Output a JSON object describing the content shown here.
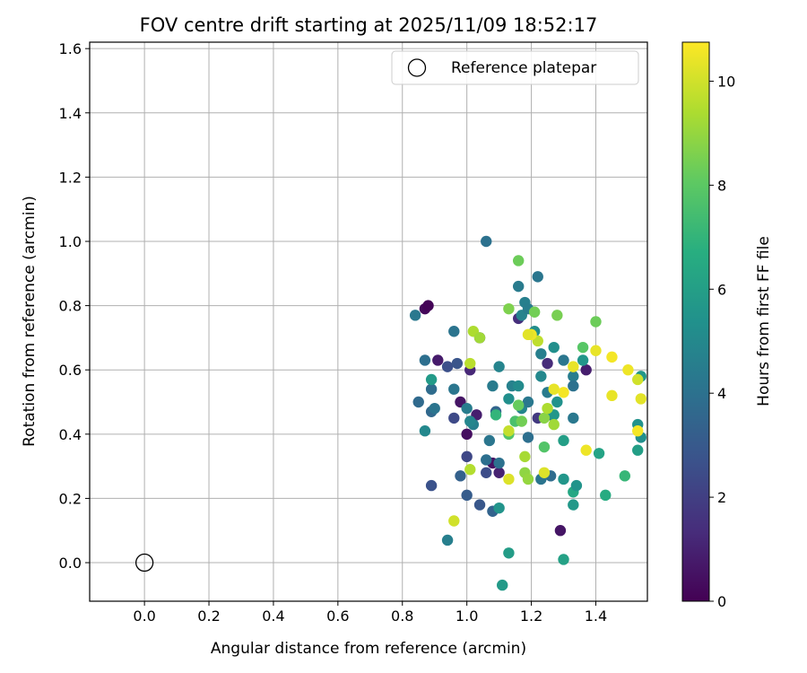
{
  "chart_data": {
    "type": "scatter",
    "title": "FOV centre drift starting at 2025/11/09 18:52:17",
    "xlabel": "Angular distance from reference (arcmin)",
    "ylabel": "Rotation from reference (arcmin)",
    "xlim": [
      -0.17,
      1.56
    ],
    "ylim": [
      -0.12,
      1.62
    ],
    "x_ticks": [
      "0.0",
      "0.2",
      "0.4",
      "0.6",
      "0.8",
      "1.0",
      "1.2",
      "1.4"
    ],
    "x_tick_values": [
      0.0,
      0.2,
      0.4,
      0.6,
      0.8,
      1.0,
      1.2,
      1.4
    ],
    "y_ticks": [
      "0.0",
      "0.2",
      "0.4",
      "0.6",
      "0.8",
      "1.0",
      "1.2",
      "1.4",
      "1.6"
    ],
    "y_tick_values": [
      0.0,
      0.2,
      0.4,
      0.6,
      0.8,
      1.0,
      1.2,
      1.4,
      1.6
    ],
    "grid": true,
    "legend": {
      "placement": "top-right",
      "label": "Reference platepar"
    },
    "reference": {
      "x": 0.0,
      "y": 0.0
    },
    "colorbar": {
      "label": "Hours from first FF file",
      "range": [
        0,
        10.75
      ],
      "ticks": [
        "0",
        "2",
        "4",
        "6",
        "8",
        "10"
      ],
      "tick_values": [
        0,
        2,
        4,
        6,
        8,
        10
      ],
      "colormap": "viridis"
    },
    "points": [
      {
        "x": 0.87,
        "y": 0.79,
        "h": 0.2
      },
      {
        "x": 0.88,
        "y": 0.8,
        "h": 0.1
      },
      {
        "x": 0.91,
        "y": 0.63,
        "h": 0.8
      },
      {
        "x": 0.98,
        "y": 0.5,
        "h": 0.6
      },
      {
        "x": 1.01,
        "y": 0.6,
        "h": 1.2
      },
      {
        "x": 1.04,
        "y": 0.7,
        "h": 1.5
      },
      {
        "x": 1.03,
        "y": 0.46,
        "h": 0.9
      },
      {
        "x": 1.0,
        "y": 0.4,
        "h": 0.4
      },
      {
        "x": 1.08,
        "y": 0.31,
        "h": 0.5
      },
      {
        "x": 1.1,
        "y": 0.28,
        "h": 1.0
      },
      {
        "x": 1.16,
        "y": 0.76,
        "h": 1.4
      },
      {
        "x": 1.25,
        "y": 0.62,
        "h": 1.3
      },
      {
        "x": 1.37,
        "y": 0.6,
        "h": 0.9
      },
      {
        "x": 1.29,
        "y": 0.1,
        "h": 0.6
      },
      {
        "x": 1.22,
        "y": 0.45,
        "h": 1.8
      },
      {
        "x": 0.94,
        "y": 0.61,
        "h": 2.6
      },
      {
        "x": 0.96,
        "y": 0.45,
        "h": 2.4
      },
      {
        "x": 0.97,
        "y": 0.62,
        "h": 2.8
      },
      {
        "x": 0.89,
        "y": 0.24,
        "h": 2.7
      },
      {
        "x": 1.0,
        "y": 0.21,
        "h": 3.1
      },
      {
        "x": 1.0,
        "y": 0.33,
        "h": 2.3
      },
      {
        "x": 1.04,
        "y": 0.18,
        "h": 2.9
      },
      {
        "x": 1.08,
        "y": 0.16,
        "h": 3.4
      },
      {
        "x": 1.06,
        "y": 0.28,
        "h": 2.5
      },
      {
        "x": 0.98,
        "y": 0.27,
        "h": 3.3
      },
      {
        "x": 0.89,
        "y": 0.47,
        "h": 3.6
      },
      {
        "x": 0.85,
        "y": 0.5,
        "h": 3.7
      },
      {
        "x": 0.87,
        "y": 0.63,
        "h": 3.9
      },
      {
        "x": 0.89,
        "y": 0.54,
        "h": 3.8
      },
      {
        "x": 0.9,
        "y": 0.48,
        "h": 4.1
      },
      {
        "x": 1.06,
        "y": 1.0,
        "h": 4.0
      },
      {
        "x": 1.22,
        "y": 0.89,
        "h": 4.2
      },
      {
        "x": 1.16,
        "y": 0.86,
        "h": 4.4
      },
      {
        "x": 1.18,
        "y": 0.81,
        "h": 4.6
      },
      {
        "x": 1.17,
        "y": 0.77,
        "h": 4.8
      },
      {
        "x": 1.19,
        "y": 0.79,
        "h": 4.5
      },
      {
        "x": 0.84,
        "y": 0.77,
        "h": 4.3
      },
      {
        "x": 0.96,
        "y": 0.72,
        "h": 4.1
      },
      {
        "x": 0.96,
        "y": 0.54,
        "h": 4.2
      },
      {
        "x": 1.0,
        "y": 0.48,
        "h": 4.5
      },
      {
        "x": 1.02,
        "y": 0.43,
        "h": 4.6
      },
      {
        "x": 1.01,
        "y": 0.44,
        "h": 4.9
      },
      {
        "x": 1.08,
        "y": 0.55,
        "h": 4.4
      },
      {
        "x": 1.09,
        "y": 0.47,
        "h": 3.5
      },
      {
        "x": 1.1,
        "y": 0.61,
        "h": 4.8
      },
      {
        "x": 1.07,
        "y": 0.38,
        "h": 4.2
      },
      {
        "x": 1.06,
        "y": 0.32,
        "h": 3.9
      },
      {
        "x": 1.1,
        "y": 0.31,
        "h": 4.0
      },
      {
        "x": 1.13,
        "y": 0.51,
        "h": 5.3
      },
      {
        "x": 1.14,
        "y": 0.55,
        "h": 4.7
      },
      {
        "x": 1.16,
        "y": 0.55,
        "h": 5.1
      },
      {
        "x": 1.17,
        "y": 0.48,
        "h": 4.9
      },
      {
        "x": 1.19,
        "y": 0.5,
        "h": 4.3
      },
      {
        "x": 1.19,
        "y": 0.39,
        "h": 3.9
      },
      {
        "x": 1.21,
        "y": 0.72,
        "h": 5.2
      },
      {
        "x": 1.23,
        "y": 0.65,
        "h": 4.6
      },
      {
        "x": 1.23,
        "y": 0.58,
        "h": 5.0
      },
      {
        "x": 1.25,
        "y": 0.53,
        "h": 4.4
      },
      {
        "x": 1.26,
        "y": 0.46,
        "h": 3.6
      },
      {
        "x": 1.23,
        "y": 0.26,
        "h": 4.1
      },
      {
        "x": 1.26,
        "y": 0.27,
        "h": 3.8
      },
      {
        "x": 1.27,
        "y": 0.46,
        "h": 5.6
      },
      {
        "x": 1.28,
        "y": 0.5,
        "h": 5.4
      },
      {
        "x": 1.27,
        "y": 0.67,
        "h": 5.3
      },
      {
        "x": 1.3,
        "y": 0.63,
        "h": 4.2
      },
      {
        "x": 1.33,
        "y": 0.58,
        "h": 4.5
      },
      {
        "x": 1.33,
        "y": 0.55,
        "h": 4.0
      },
      {
        "x": 1.33,
        "y": 0.45,
        "h": 4.3
      },
      {
        "x": 1.36,
        "y": 0.63,
        "h": 5.6
      },
      {
        "x": 1.3,
        "y": 0.38,
        "h": 6.0
      },
      {
        "x": 1.3,
        "y": 0.26,
        "h": 5.6
      },
      {
        "x": 1.33,
        "y": 0.18,
        "h": 5.7
      },
      {
        "x": 1.33,
        "y": 0.22,
        "h": 6.4
      },
      {
        "x": 1.34,
        "y": 0.24,
        "h": 5.5
      },
      {
        "x": 1.3,
        "y": 0.01,
        "h": 6.1
      },
      {
        "x": 1.13,
        "y": 0.03,
        "h": 5.9
      },
      {
        "x": 1.11,
        "y": -0.07,
        "h": 5.8
      },
      {
        "x": 1.1,
        "y": 0.17,
        "h": 5.5
      },
      {
        "x": 0.94,
        "y": 0.07,
        "h": 4.6
      },
      {
        "x": 0.87,
        "y": 0.41,
        "h": 5.0
      },
      {
        "x": 0.89,
        "y": 0.57,
        "h": 5.8
      },
      {
        "x": 1.41,
        "y": 0.34,
        "h": 6.2
      },
      {
        "x": 1.43,
        "y": 0.21,
        "h": 6.6
      },
      {
        "x": 1.49,
        "y": 0.27,
        "h": 7.1
      },
      {
        "x": 1.54,
        "y": 0.58,
        "h": 5.7
      },
      {
        "x": 1.54,
        "y": 0.39,
        "h": 5.3
      },
      {
        "x": 1.53,
        "y": 0.43,
        "h": 5.4
      },
      {
        "x": 1.53,
        "y": 0.35,
        "h": 6.0
      },
      {
        "x": 1.09,
        "y": 0.46,
        "h": 7.0
      },
      {
        "x": 1.15,
        "y": 0.44,
        "h": 7.6
      },
      {
        "x": 1.13,
        "y": 0.4,
        "h": 7.8
      },
      {
        "x": 1.16,
        "y": 0.49,
        "h": 8.2
      },
      {
        "x": 1.17,
        "y": 0.44,
        "h": 8.4
      },
      {
        "x": 1.13,
        "y": 0.79,
        "h": 8.6
      },
      {
        "x": 1.16,
        "y": 0.94,
        "h": 8.3
      },
      {
        "x": 1.21,
        "y": 0.78,
        "h": 8.4
      },
      {
        "x": 1.28,
        "y": 0.77,
        "h": 8.5
      },
      {
        "x": 1.4,
        "y": 0.75,
        "h": 8.3
      },
      {
        "x": 1.36,
        "y": 0.67,
        "h": 7.9
      },
      {
        "x": 1.24,
        "y": 0.36,
        "h": 7.8
      },
      {
        "x": 1.18,
        "y": 0.28,
        "h": 8.9
      },
      {
        "x": 1.24,
        "y": 0.45,
        "h": 8.8
      },
      {
        "x": 1.02,
        "y": 0.72,
        "h": 9.4
      },
      {
        "x": 1.04,
        "y": 0.7,
        "h": 9.2
      },
      {
        "x": 1.01,
        "y": 0.62,
        "h": 9.6
      },
      {
        "x": 1.01,
        "y": 0.29,
        "h": 9.5
      },
      {
        "x": 0.96,
        "y": 0.13,
        "h": 10.0
      },
      {
        "x": 1.13,
        "y": 0.41,
        "h": 9.8
      },
      {
        "x": 1.13,
        "y": 0.26,
        "h": 10.2
      },
      {
        "x": 1.18,
        "y": 0.33,
        "h": 9.3
      },
      {
        "x": 1.19,
        "y": 0.26,
        "h": 9.0
      },
      {
        "x": 1.22,
        "y": 0.69,
        "h": 9.7
      },
      {
        "x": 1.2,
        "y": 0.71,
        "h": 10.5
      },
      {
        "x": 1.19,
        "y": 0.71,
        "h": 10.3
      },
      {
        "x": 1.25,
        "y": 0.48,
        "h": 9.4
      },
      {
        "x": 1.27,
        "y": 0.43,
        "h": 9.2
      },
      {
        "x": 1.27,
        "y": 0.54,
        "h": 10.4
      },
      {
        "x": 1.3,
        "y": 0.53,
        "h": 10.6
      },
      {
        "x": 1.24,
        "y": 0.28,
        "h": 10.2
      },
      {
        "x": 1.33,
        "y": 0.61,
        "h": 10.4
      },
      {
        "x": 1.37,
        "y": 0.35,
        "h": 10.5
      },
      {
        "x": 1.4,
        "y": 0.66,
        "h": 10.4
      },
      {
        "x": 1.45,
        "y": 0.64,
        "h": 10.6
      },
      {
        "x": 1.45,
        "y": 0.52,
        "h": 10.4
      },
      {
        "x": 1.5,
        "y": 0.6,
        "h": 10.5
      },
      {
        "x": 1.53,
        "y": 0.57,
        "h": 10.0
      },
      {
        "x": 1.54,
        "y": 0.51,
        "h": 10.3
      },
      {
        "x": 1.53,
        "y": 0.41,
        "h": 10.6
      }
    ]
  }
}
